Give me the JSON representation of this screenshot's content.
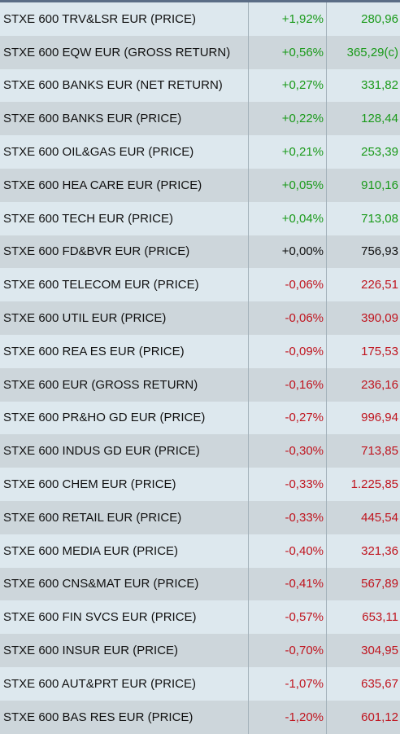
{
  "colors": {
    "positive": "#1a9a1a",
    "negative": "#c0141e",
    "neutral": "#111111"
  },
  "rows": [
    {
      "name": "STXE 600 TRV&LSR EUR (PRICE)",
      "change": "+1,92%",
      "value": "280,96",
      "direction": "pos"
    },
    {
      "name": "STXE 600 EQW EUR (GROSS RETURN)",
      "change": "+0,56%",
      "value": "365,29(c)",
      "direction": "pos"
    },
    {
      "name": "STXE 600 BANKS EUR (NET RETURN)",
      "change": "+0,27%",
      "value": "331,82",
      "direction": "pos"
    },
    {
      "name": "STXE 600 BANKS EUR (PRICE)",
      "change": "+0,22%",
      "value": "128,44",
      "direction": "pos"
    },
    {
      "name": "STXE 600 OIL&GAS EUR (PRICE)",
      "change": "+0,21%",
      "value": "253,39",
      "direction": "pos"
    },
    {
      "name": "STXE 600 HEA CARE EUR (PRICE)",
      "change": "+0,05%",
      "value": "910,16",
      "direction": "pos"
    },
    {
      "name": "STXE 600 TECH EUR (PRICE)",
      "change": "+0,04%",
      "value": "713,08",
      "direction": "pos"
    },
    {
      "name": "STXE 600 FD&BVR EUR (PRICE)",
      "change": "+0,00%",
      "value": "756,93",
      "direction": "neu"
    },
    {
      "name": "STXE 600 TELECOM EUR (PRICE)",
      "change": "-0,06%",
      "value": "226,51",
      "direction": "neg"
    },
    {
      "name": "STXE 600 UTIL EUR (PRICE)",
      "change": "-0,06%",
      "value": "390,09",
      "direction": "neg"
    },
    {
      "name": "STXE 600 REA ES EUR (PRICE)",
      "change": "-0,09%",
      "value": "175,53",
      "direction": "neg"
    },
    {
      "name": "STXE 600 EUR (GROSS RETURN)",
      "change": "-0,16%",
      "value": "236,16",
      "direction": "neg"
    },
    {
      "name": "STXE 600 PR&HO GD EUR (PRICE)",
      "change": "-0,27%",
      "value": "996,94",
      "direction": "neg"
    },
    {
      "name": "STXE 600 INDUS GD EUR (PRICE)",
      "change": "-0,30%",
      "value": "713,85",
      "direction": "neg"
    },
    {
      "name": "STXE 600 CHEM EUR (PRICE)",
      "change": "-0,33%",
      "value": "1.225,85",
      "direction": "neg"
    },
    {
      "name": "STXE 600 RETAIL EUR (PRICE)",
      "change": "-0,33%",
      "value": "445,54",
      "direction": "neg"
    },
    {
      "name": "STXE 600 MEDIA EUR (PRICE)",
      "change": "-0,40%",
      "value": "321,36",
      "direction": "neg"
    },
    {
      "name": "STXE 600 CNS&MAT EUR (PRICE)",
      "change": "-0,41%",
      "value": "567,89",
      "direction": "neg"
    },
    {
      "name": "STXE 600 FIN SVCS EUR (PRICE)",
      "change": "-0,57%",
      "value": "653,11",
      "direction": "neg"
    },
    {
      "name": "STXE 600 INSUR EUR (PRICE)",
      "change": "-0,70%",
      "value": "304,95",
      "direction": "neg"
    },
    {
      "name": "STXE 600 AUT&PRT EUR (PRICE)",
      "change": "-1,07%",
      "value": "635,67",
      "direction": "neg"
    },
    {
      "name": "STXE 600 BAS RES EUR (PRICE)",
      "change": "-1,20%",
      "value": "601,12",
      "direction": "neg"
    }
  ]
}
